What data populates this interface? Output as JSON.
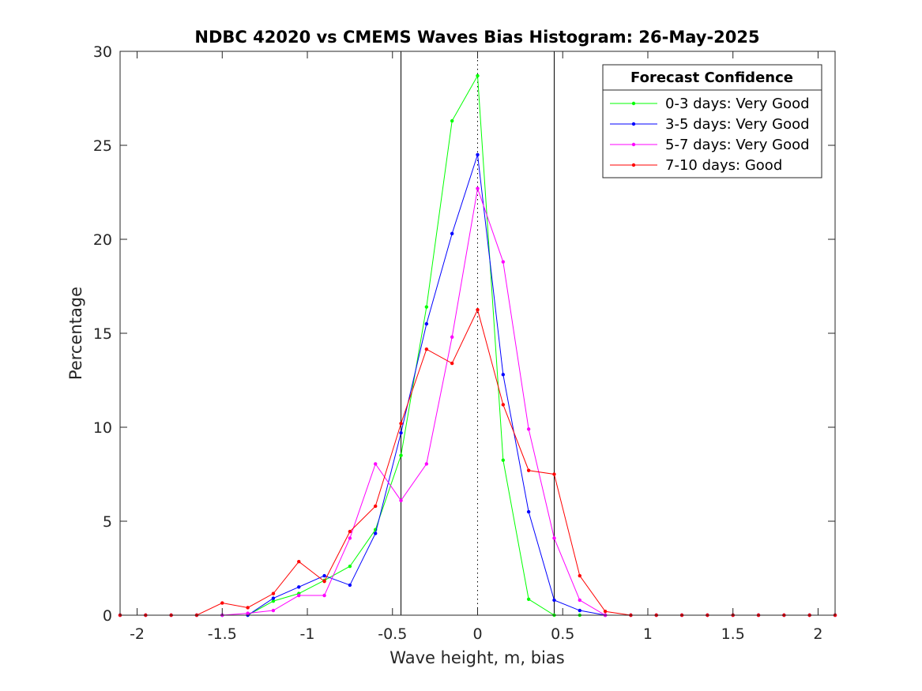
{
  "chart_data": {
    "type": "line",
    "title": "NDBC 42020 vs CMEMS Waves Bias Histogram: 26-May-2025",
    "xlabel": "Wave height, m, bias",
    "ylabel": "Percentage",
    "xlim": [
      -2.1,
      2.1
    ],
    "ylim": [
      0,
      30
    ],
    "xticks": [
      -2,
      -1.5,
      -1,
      -0.5,
      0,
      0.5,
      1,
      1.5,
      2
    ],
    "xtick_labels": [
      "-2",
      "-1.5",
      "-1",
      "-0.5",
      "0",
      "0.5",
      "1",
      "1.5",
      "2"
    ],
    "yticks": [
      0,
      5,
      10,
      15,
      20,
      25,
      30
    ],
    "ytick_labels": [
      "0",
      "5",
      "10",
      "15",
      "20",
      "25",
      "30"
    ],
    "grid": false,
    "reference_lines": [
      {
        "x": -0.45,
        "style": "solid"
      },
      {
        "x": 0,
        "style": "dotted"
      },
      {
        "x": 0.45,
        "style": "solid"
      }
    ],
    "legend": {
      "title": "Forecast Confidence",
      "placement": "top-right"
    },
    "x": [
      -2.1,
      -1.95,
      -1.8,
      -1.65,
      -1.5,
      -1.35,
      -1.2,
      -1.05,
      -0.9,
      -0.75,
      -0.6,
      -0.45,
      -0.3,
      -0.15,
      0,
      0.15,
      0.3,
      0.45,
      0.6,
      0.75,
      0.9,
      1.05,
      1.2,
      1.35,
      1.5,
      1.65,
      1.8,
      1.95,
      2.1
    ],
    "series": [
      {
        "name": "0-3 days: Very Good",
        "color": "#00ff00",
        "values": [
          0,
          0,
          0,
          0,
          0,
          0,
          0.75,
          1.15,
          1.85,
          2.6,
          4.55,
          8.5,
          16.4,
          26.3,
          28.7,
          8.25,
          0.85,
          0,
          0,
          0,
          0,
          0,
          0,
          0,
          0,
          0,
          0,
          0,
          0
        ]
      },
      {
        "name": "3-5 days: Very Good",
        "color": "#0000ff",
        "values": [
          0,
          0,
          0,
          0,
          0,
          0,
          0.9,
          1.5,
          2.1,
          1.6,
          4.35,
          9.7,
          15.5,
          20.3,
          24.5,
          12.8,
          5.5,
          0.8,
          0.25,
          0,
          0,
          0,
          0,
          0,
          0,
          0,
          0,
          0,
          0
        ]
      },
      {
        "name": "5-7 days: Very Good",
        "color": "#ff00ff",
        "values": [
          0,
          0,
          0,
          0,
          0,
          0.1,
          0.25,
          1.05,
          1.05,
          4.1,
          8.05,
          6.1,
          8.05,
          14.8,
          22.7,
          18.8,
          9.9,
          4.1,
          0.8,
          0,
          0,
          0,
          0,
          0,
          0,
          0,
          0,
          0,
          0
        ]
      },
      {
        "name": "7-10 days: Good",
        "color": "#ff0000",
        "values": [
          0,
          0,
          0,
          0,
          0.65,
          0.4,
          1.15,
          2.85,
          1.8,
          4.45,
          5.8,
          10.2,
          14.15,
          13.4,
          16.25,
          11.2,
          7.7,
          7.5,
          2.1,
          0.2,
          0,
          0,
          0,
          0,
          0,
          0,
          0,
          0,
          0
        ]
      }
    ]
  }
}
